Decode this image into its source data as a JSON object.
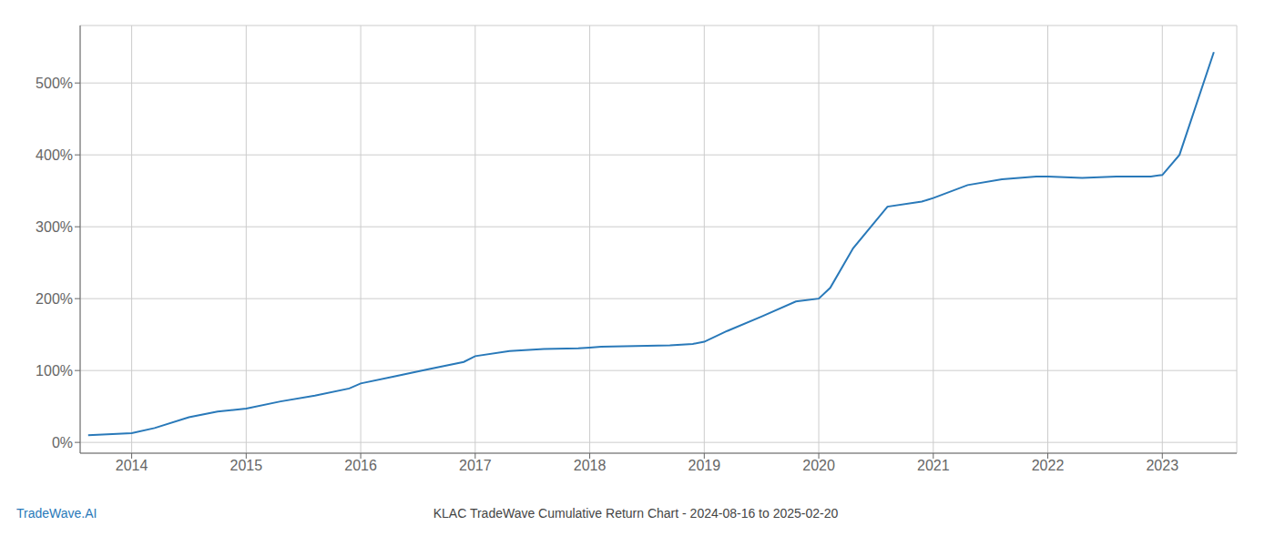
{
  "chart_data": {
    "type": "line",
    "title": "KLAC TradeWave Cumulative Return Chart - 2024-08-16 to 2025-02-20",
    "annotations": [
      "TradeWave.AI"
    ],
    "color": "#2979b9",
    "grid": true,
    "x": [
      2013.62,
      2014.0,
      2014.2,
      2014.5,
      2014.75,
      2015.0,
      2015.3,
      2015.6,
      2015.9,
      2016.0,
      2016.3,
      2016.6,
      2016.9,
      2017.0,
      2017.3,
      2017.6,
      2017.9,
      2018.0,
      2018.1,
      2018.4,
      2018.7,
      2018.9,
      2019.0,
      2019.2,
      2019.5,
      2019.8,
      2020.0,
      2020.1,
      2020.3,
      2020.6,
      2020.9,
      2021.0,
      2021.3,
      2021.6,
      2021.9,
      2022.0,
      2022.3,
      2022.6,
      2022.9,
      2023.0,
      2023.15,
      2023.45
    ],
    "values": [
      10,
      13,
      20,
      35,
      43,
      47,
      57,
      65,
      75,
      82,
      92,
      102,
      112,
      120,
      127,
      130,
      131,
      132,
      133,
      134,
      135,
      137,
      140,
      155,
      175,
      196,
      200,
      215,
      270,
      328,
      335,
      340,
      358,
      366,
      370,
      370,
      368,
      370,
      370,
      372,
      400,
      543
    ],
    "xlim": [
      2013.55,
      2023.65
    ],
    "xticks": [
      2014,
      2015,
      2016,
      2017,
      2018,
      2019,
      2020,
      2021,
      2022,
      2023
    ],
    "ylim": [
      -15,
      580
    ],
    "yticks": [
      {
        "value": 0,
        "label": "0%"
      },
      {
        "value": 100,
        "label": "100%"
      },
      {
        "value": 200,
        "label": "200%"
      },
      {
        "value": 300,
        "label": "300%"
      },
      {
        "value": 400,
        "label": "400%"
      },
      {
        "value": 500,
        "label": "500%"
      }
    ]
  }
}
